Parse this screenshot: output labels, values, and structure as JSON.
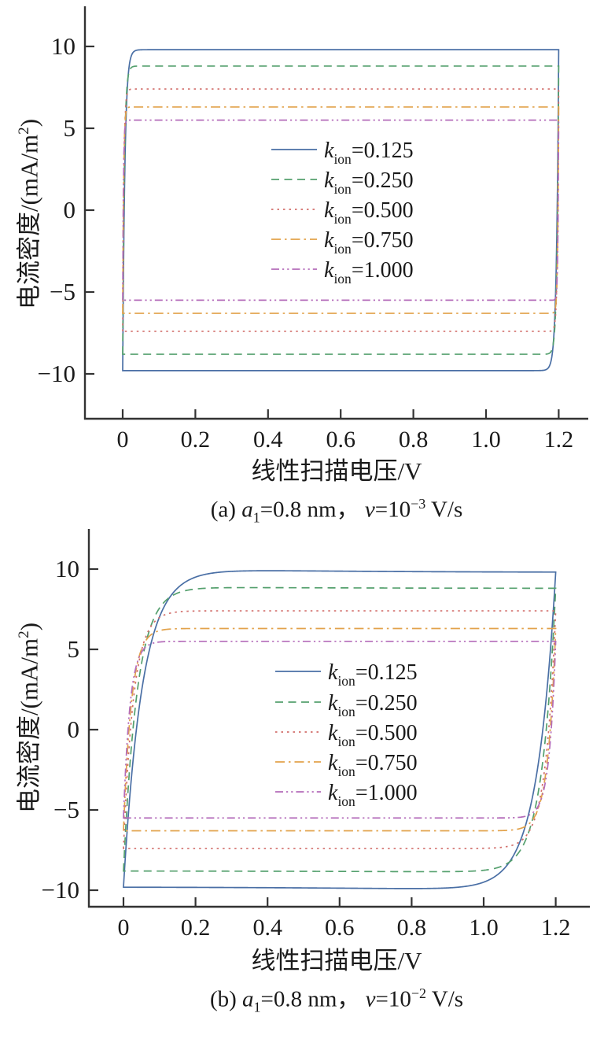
{
  "figure": {
    "ylabel": {
      "pre": "电流密度/(mA/m",
      "sup": "2",
      "post": ")"
    },
    "xlabel": "线性扫描电压/V"
  },
  "colors": {
    "axis": "#333333",
    "text": "#1a1a1a",
    "series_blue": "#4a6fa5",
    "series_green": "#55a06e",
    "series_red": "#d26f6b",
    "series_orange": "#e2a24b",
    "series_purple": "#b46cba"
  },
  "chart_data": [
    {
      "id": "a",
      "type": "line",
      "subtype": "cyclic-voltammogram-loop",
      "title": "",
      "xlabel": "线性扫描电压/V",
      "ylabel": "电流密度/(mA/m2)",
      "caption": {
        "index": "(a) ",
        "var1": "a",
        "sub1": "1",
        "mid": "=0.8 nm， ",
        "var2": "v",
        "eq2": "=10",
        "sup2": "−3",
        "unit": " V/s"
      },
      "scan_rate_V_per_s": 0.001,
      "x_start_V": 0,
      "x_end_V": 1.2,
      "xlim": [
        -0.1,
        1.28
      ],
      "ylim": [
        -12.7,
        12.5
      ],
      "grid": false,
      "legend_position": "center",
      "xticks": [
        {
          "v": 0,
          "label": "0"
        },
        {
          "v": 0.2,
          "label": "0.2"
        },
        {
          "v": 0.4,
          "label": "0.4"
        },
        {
          "v": 0.6,
          "label": "0.6"
        },
        {
          "v": 0.8,
          "label": "0.8"
        },
        {
          "v": 1.0,
          "label": "1.0"
        },
        {
          "v": 1.2,
          "label": "1.2"
        }
      ],
      "yticks": [
        {
          "v": 10,
          "label": "10"
        },
        {
          "v": 5,
          "label": "5"
        },
        {
          "v": 0,
          "label": "0"
        },
        {
          "v": -5,
          "label": "−5"
        },
        {
          "v": -10,
          "label": "−10"
        }
      ],
      "series": [
        {
          "name": "k_ion=0.125",
          "legend": {
            "var": "k",
            "sub": "ion",
            "value": "=0.125"
          },
          "k_ion": 0.125,
          "plateau_mA_per_m2": 9.8,
          "tau_V": 0.006,
          "overshoot": 0,
          "color": "#4a6fa5",
          "dash": "solid"
        },
        {
          "name": "k_ion=0.250",
          "legend": {
            "var": "k",
            "sub": "ion",
            "value": "=0.250"
          },
          "k_ion": 0.25,
          "plateau_mA_per_m2": 8.8,
          "tau_V": 0.0045,
          "overshoot": 0,
          "color": "#55a06e",
          "dash": "dashed"
        },
        {
          "name": "k_ion=0.500",
          "legend": {
            "var": "k",
            "sub": "ion",
            "value": "=0.500"
          },
          "k_ion": 0.5,
          "plateau_mA_per_m2": 7.4,
          "tau_V": 0.0032,
          "overshoot": 0,
          "color": "#d26f6b",
          "dash": "dotted"
        },
        {
          "name": "k_ion=0.750",
          "legend": {
            "var": "k",
            "sub": "ion",
            "value": "=0.750"
          },
          "k_ion": 0.75,
          "plateau_mA_per_m2": 6.3,
          "tau_V": 0.0025,
          "overshoot": 0,
          "color": "#e2a24b",
          "dash": "dashdot"
        },
        {
          "name": "k_ion=1.000",
          "legend": {
            "var": "k",
            "sub": "ion",
            "value": "=1.000"
          },
          "k_ion": 1.0,
          "plateau_mA_per_m2": 5.5,
          "tau_V": 0.002,
          "overshoot": 0,
          "color": "#b46cba",
          "dash": "dashdotdot"
        }
      ]
    },
    {
      "id": "b",
      "type": "line",
      "subtype": "cyclic-voltammogram-loop",
      "title": "",
      "xlabel": "线性扫描电压/V",
      "ylabel": "电流密度/(mA/m2)",
      "caption": {
        "index": "(b) ",
        "var1": "a",
        "sub1": "1",
        "mid": "=0.8 nm， ",
        "var2": "v",
        "eq2": "=10",
        "sup2": "−2",
        "unit": " V/s"
      },
      "scan_rate_V_per_s": 0.01,
      "x_start_V": 0,
      "x_end_V": 1.2,
      "xlim": [
        -0.1,
        1.29
      ],
      "ylim": [
        -11.3,
        12.6
      ],
      "grid": false,
      "legend_position": "center",
      "xticks": [
        {
          "v": 0,
          "label": "0"
        },
        {
          "v": 0.2,
          "label": "0.2"
        },
        {
          "v": 0.4,
          "label": "0.4"
        },
        {
          "v": 0.6,
          "label": "0.6"
        },
        {
          "v": 0.8,
          "label": "0.8"
        },
        {
          "v": 1.0,
          "label": "1.0"
        },
        {
          "v": 1.2,
          "label": "1.2"
        }
      ],
      "yticks": [
        {
          "v": 10,
          "label": "10"
        },
        {
          "v": 5,
          "label": "5"
        },
        {
          "v": 0,
          "label": "0"
        },
        {
          "v": -5,
          "label": "−5"
        },
        {
          "v": -10,
          "label": "−10"
        }
      ],
      "series": [
        {
          "name": "k_ion=0.125",
          "legend": {
            "var": "k",
            "sub": "ion",
            "value": "=0.125"
          },
          "k_ion": 0.125,
          "plateau_mA_per_m2": 9.8,
          "tau_V": 0.052,
          "overshoot": 0.12,
          "color": "#4a6fa5",
          "dash": "solid"
        },
        {
          "name": "k_ion=0.250",
          "legend": {
            "var": "k",
            "sub": "ion",
            "value": "=0.250"
          },
          "k_ion": 0.25,
          "plateau_mA_per_m2": 8.8,
          "tau_V": 0.038,
          "overshoot": 0.05,
          "color": "#55a06e",
          "dash": "dashed"
        },
        {
          "name": "k_ion=0.500",
          "legend": {
            "var": "k",
            "sub": "ion",
            "value": "=0.500"
          },
          "k_ion": 0.5,
          "plateau_mA_per_m2": 7.4,
          "tau_V": 0.028,
          "overshoot": 0,
          "color": "#d26f6b",
          "dash": "dotted"
        },
        {
          "name": "k_ion=0.750",
          "legend": {
            "var": "k",
            "sub": "ion",
            "value": "=0.750"
          },
          "k_ion": 0.75,
          "plateau_mA_per_m2": 6.3,
          "tau_V": 0.022,
          "overshoot": 0,
          "color": "#e2a24b",
          "dash": "dashdot"
        },
        {
          "name": "k_ion=1.000",
          "legend": {
            "var": "k",
            "sub": "ion",
            "value": "=1.000"
          },
          "k_ion": 1.0,
          "plateau_mA_per_m2": 5.5,
          "tau_V": 0.018,
          "overshoot": 0,
          "color": "#b46cba",
          "dash": "dashdotdot"
        }
      ]
    }
  ]
}
